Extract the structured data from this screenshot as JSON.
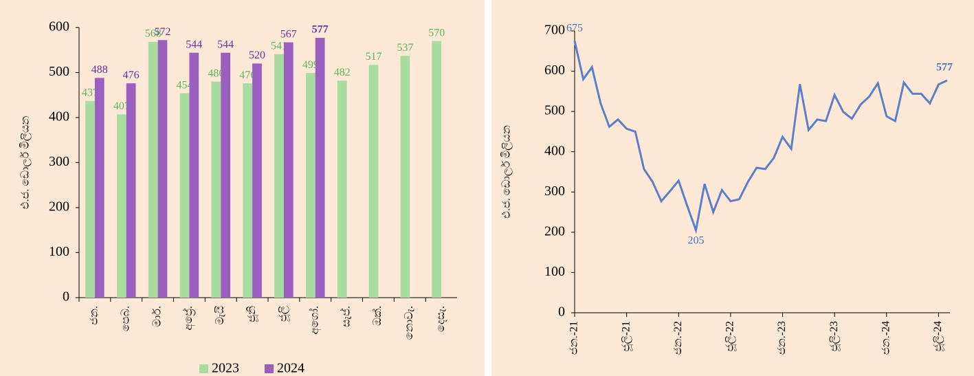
{
  "chart_data": [
    {
      "type": "bar",
      "ylabel": "එ.ජ. ඩොලර් මිලියන",
      "categories": [
        "ජන.",
        "පෙබ.",
        "මාර්.",
        "අප්‍රේ.",
        "මැයි",
        "ජූනි",
        "ජූලි",
        "අගෝ.",
        "සැප්.",
        "ඔක්.",
        "නොවැ.",
        "දෙසැ."
      ],
      "series": [
        {
          "name": "2023",
          "color": "#a8dca0",
          "label_color": "#5cb85c",
          "values": [
            437,
            407,
            568,
            454,
            480,
            476,
            541,
            499,
            482,
            517,
            537,
            570
          ]
        },
        {
          "name": "2024",
          "color": "#9b5fc0",
          "label_color": "#7030a0",
          "values": [
            488,
            476,
            572,
            544,
            544,
            520,
            567,
            577,
            null,
            null,
            null,
            null
          ]
        }
      ],
      "ylim": [
        0,
        600
      ],
      "yticks": [
        0,
        100,
        200,
        300,
        400,
        500,
        600
      ],
      "legend": "bottom"
    },
    {
      "type": "line",
      "ylabel": "එ.ජ. ඩොලර් මිලියන",
      "categories": [
        "ජන.-21",
        null,
        null,
        null,
        null,
        null,
        "ජූලි-21",
        null,
        null,
        null,
        null,
        null,
        "ජන.-22",
        null,
        null,
        null,
        null,
        null,
        "ජූලි-22",
        null,
        null,
        null,
        null,
        null,
        "ජන.-23",
        null,
        null,
        null,
        null,
        null,
        "ජූලි-23",
        null,
        null,
        null,
        null,
        null,
        "ජන.-24",
        null,
        null,
        null,
        null,
        null,
        "ජූලි-24",
        null
      ],
      "series": [
        {
          "name": null,
          "color": "#5b7fcc",
          "label_color": "#4a72c4",
          "values": [
            675,
            580,
            610,
            520,
            462,
            480,
            457,
            450,
            357,
            325,
            277,
            302,
            328,
            265,
            205,
            320,
            250,
            305,
            277,
            282,
            325,
            360,
            357,
            385,
            437,
            407,
            568,
            454,
            480,
            476,
            541,
            499,
            482,
            517,
            537,
            570,
            488,
            476,
            572,
            544,
            544,
            520,
            567,
            577
          ],
          "value_labels": [
            "675",
            null,
            null,
            null,
            null,
            null,
            null,
            null,
            null,
            null,
            null,
            null,
            null,
            null,
            "205",
            null,
            null,
            null,
            null,
            null,
            null,
            null,
            null,
            null,
            null,
            null,
            null,
            null,
            null,
            null,
            null,
            null,
            null,
            null,
            null,
            null,
            null,
            null,
            null,
            null,
            null,
            null,
            null,
            "577"
          ]
        }
      ],
      "ylim": [
        0,
        700
      ],
      "yticks": [
        0,
        100,
        200,
        300,
        400,
        500,
        600,
        700
      ]
    }
  ]
}
